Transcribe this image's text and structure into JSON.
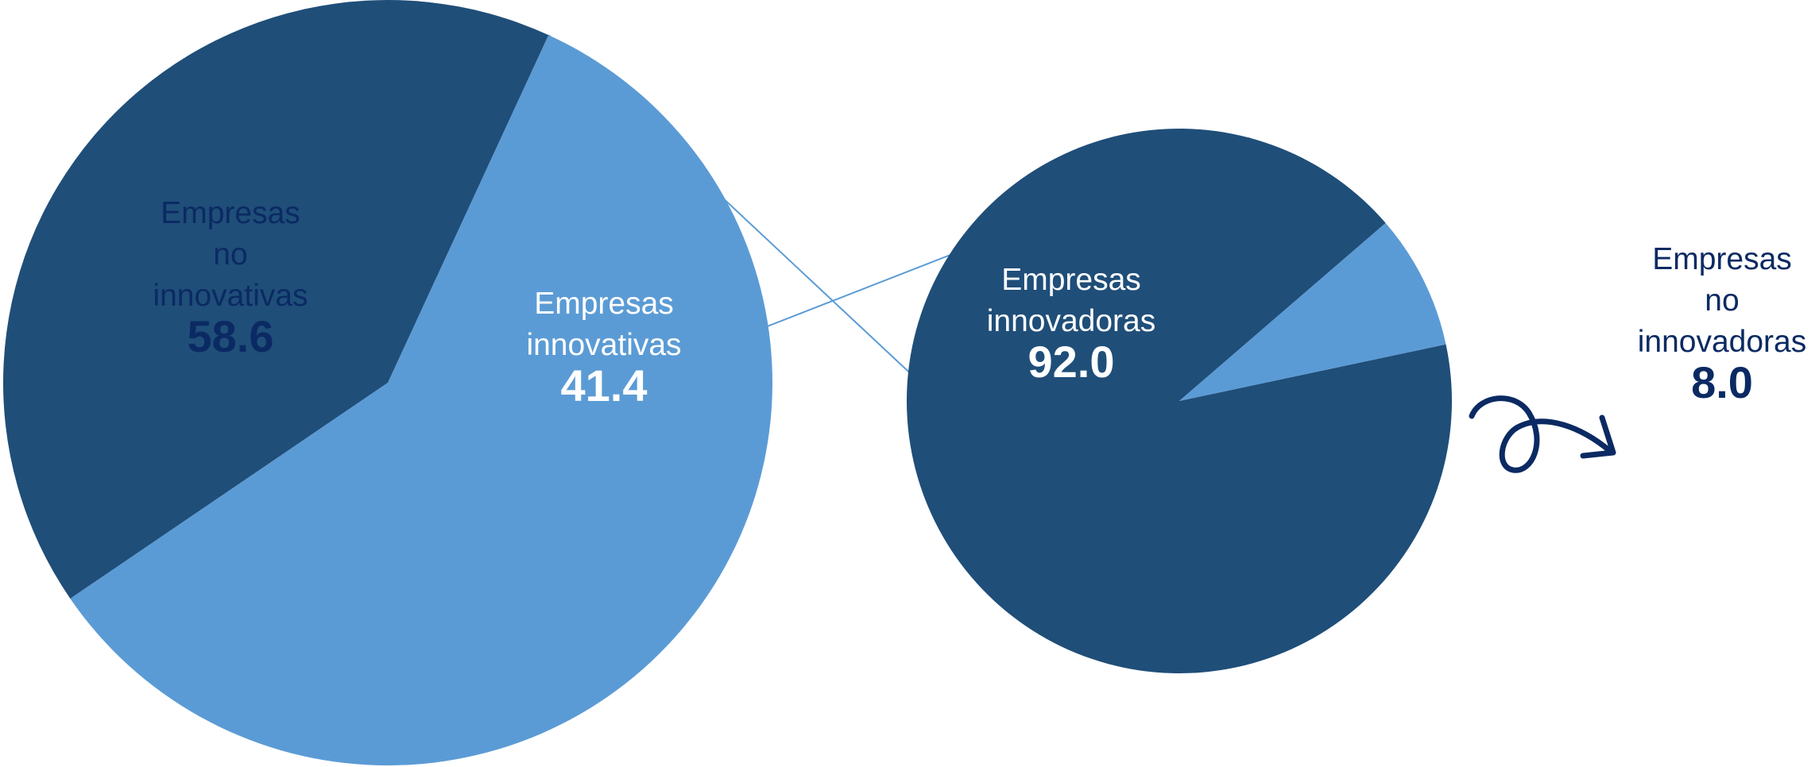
{
  "chart_data": [
    {
      "type": "pie",
      "slices": [
        {
          "label": [
            "Empresas",
            "no",
            "innovativas"
          ],
          "value": 58.6,
          "display": "58.6",
          "color": "#5b9bd5"
        },
        {
          "label": [
            "Empresas",
            "innovativas"
          ],
          "value": 41.4,
          "display": "41.4",
          "color": "#1f4e79"
        }
      ]
    },
    {
      "type": "pie",
      "slices": [
        {
          "label": [
            "Empresas",
            "innovadoras"
          ],
          "value": 92.0,
          "display": "92.0",
          "color": "#1f4e79"
        },
        {
          "label": [
            "Empresas",
            "no",
            "innovadoras"
          ],
          "value": 8.0,
          "display": "8.0",
          "color": "#5b9bd5"
        }
      ]
    }
  ],
  "colors": {
    "light": "#5b9bd5",
    "dark": "#1f4e79",
    "label_dark": "#0b2a63",
    "label_light": "#ffffff",
    "connector": "#5b9bd5",
    "arrow": "#0b2a63"
  },
  "icons": {
    "annotation": "curly-arrow-icon"
  }
}
